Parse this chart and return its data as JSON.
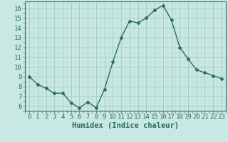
{
  "x": [
    0,
    1,
    2,
    3,
    4,
    5,
    6,
    7,
    8,
    9,
    10,
    11,
    12,
    13,
    14,
    15,
    16,
    17,
    18,
    19,
    20,
    21,
    22,
    23
  ],
  "y": [
    9,
    8.2,
    7.8,
    7.3,
    7.3,
    6.3,
    5.8,
    6.4,
    5.8,
    7.7,
    10.5,
    13.0,
    14.7,
    14.5,
    15.0,
    15.8,
    16.3,
    14.8,
    12.0,
    10.8,
    9.7,
    9.4,
    9.1,
    8.8
  ],
  "line_color": "#2d6b5e",
  "marker": "D",
  "marker_size": 2.5,
  "line_width": 1.0,
  "bg_color": "#c8e8e4",
  "grid_major_color": "#a8ccc8",
  "grid_minor_color": "#b8dcd8",
  "xlabel": "Humidex (Indice chaleur)",
  "xlabel_fontsize": 7.5,
  "tick_fontsize": 6.5,
  "ylim": [
    5.5,
    16.7
  ],
  "xlim": [
    -0.5,
    23.5
  ],
  "yticks": [
    6,
    7,
    8,
    9,
    10,
    11,
    12,
    13,
    14,
    15,
    16
  ],
  "xticks": [
    0,
    1,
    2,
    3,
    4,
    5,
    6,
    7,
    8,
    9,
    10,
    11,
    12,
    13,
    14,
    15,
    16,
    17,
    18,
    19,
    20,
    21,
    22,
    23
  ]
}
